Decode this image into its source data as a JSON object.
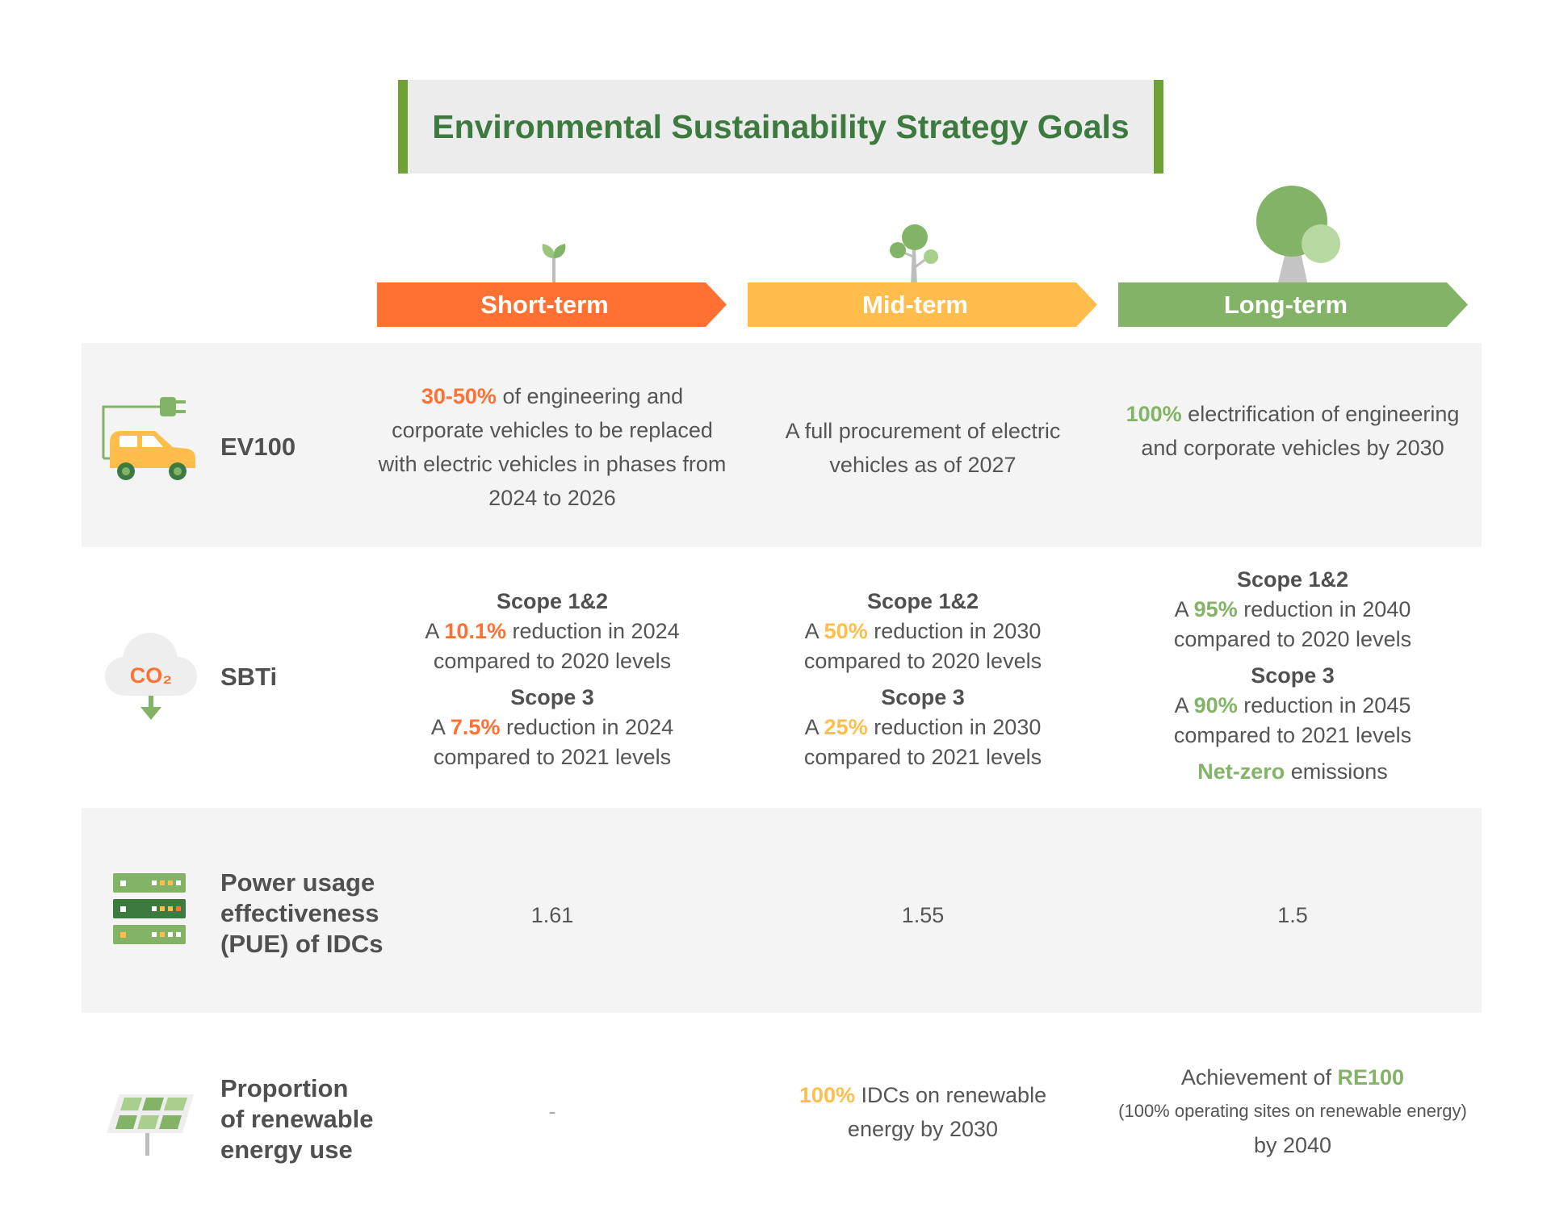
{
  "title": "Environmental Sustainability Strategy Goals",
  "terms": {
    "short": "Short-term",
    "mid": "Mid-term",
    "long": "Long-term"
  },
  "rows": {
    "ev100": {
      "label": "EV100",
      "short": {
        "highlight": "30-50%",
        "text": " of engineering and corporate vehicles to be replaced with electric vehicles in phases from 2024 to 2026"
      },
      "mid": {
        "text": "A full procurement of electric vehicles as of 2027"
      },
      "long": {
        "highlight": "100%",
        "text": " electrification of engineering and corporate vehicles by 2030"
      }
    },
    "sbti": {
      "label": "SBTi",
      "icon_text": "CO₂",
      "short": {
        "scope12_title": "Scope 1&2",
        "scope12_pre": "A ",
        "scope12_highlight": "10.1%",
        "scope12_post": " reduction in 2024",
        "scope12_line2": "compared to 2020 levels",
        "scope3_title": "Scope 3",
        "scope3_pre": "A ",
        "scope3_highlight": "7.5%",
        "scope3_post": " reduction in 2024",
        "scope3_line2": "compared to 2021 levels"
      },
      "mid": {
        "scope12_title": "Scope 1&2",
        "scope12_pre": "A ",
        "scope12_highlight": "50%",
        "scope12_post": " reduction in 2030",
        "scope12_line2": "compared to 2020 levels",
        "scope3_title": "Scope 3",
        "scope3_pre": "A ",
        "scope3_highlight": "25%",
        "scope3_post": " reduction in 2030",
        "scope3_line2": "compared to 2021 levels"
      },
      "long": {
        "scope12_title": "Scope 1&2",
        "scope12_pre": "A ",
        "scope12_highlight": "95%",
        "scope12_post": " reduction in 2040",
        "scope12_line2": "compared to 2020 levels",
        "scope3_title": "Scope 3",
        "scope3_pre": "A ",
        "scope3_highlight": "90%",
        "scope3_post": " reduction in 2045",
        "scope3_line2": "compared to 2021 levels",
        "netzero_highlight": "Net-zero",
        "netzero_text": " emissions"
      }
    },
    "pue": {
      "label_lines": [
        "Power usage",
        "effectiveness",
        "(PUE) of IDCs"
      ],
      "short": "1.61",
      "mid": "1.55",
      "long": "1.5"
    },
    "renewable": {
      "label_lines": [
        "Proportion",
        "of renewable",
        "energy use"
      ],
      "short": "-",
      "mid": {
        "highlight": "100%",
        "text": " IDCs on renewable energy by 2030"
      },
      "long": {
        "pre": "Achievement of ",
        "highlight": "RE100",
        "note": "(100% operating sites on renewable energy)",
        "post": "by 2040"
      }
    }
  },
  "colors": {
    "short": "#ff7133",
    "mid": "#ffbe4c",
    "long": "#82b366",
    "title": "#3d7a3f",
    "title_bar": "#6fa135"
  },
  "icons": {
    "short": "sprout-icon",
    "mid": "small-tree-icon",
    "long": "large-tree-icon",
    "ev100": "electric-car-icon",
    "sbti": "co2-cloud-icon",
    "pue": "server-rack-icon",
    "renewable": "solar-panel-icon"
  }
}
